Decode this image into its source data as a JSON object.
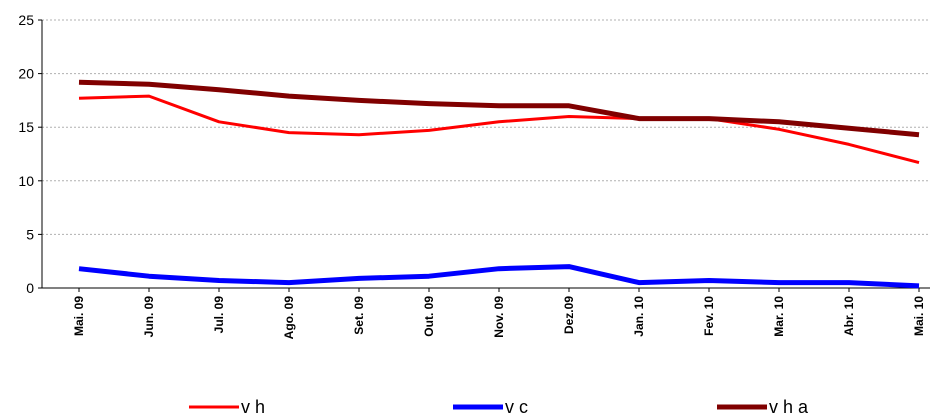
{
  "chart_data": {
    "type": "line",
    "categories": [
      "Mai. 09",
      "Jun. 09",
      "Jul. 09",
      "Ago. 09",
      "Set. 09",
      "Out. 09",
      "Nov. 09",
      "Dez.09",
      "Jan. 10",
      "Fev. 10",
      "Mar. 10",
      "Abr. 10",
      "Mai. 10"
    ],
    "series": [
      {
        "name": "v h",
        "color": "#ff0000",
        "values": [
          17.7,
          17.9,
          15.5,
          14.5,
          14.3,
          14.7,
          15.5,
          16.0,
          15.8,
          15.8,
          14.8,
          13.4,
          11.7
        ]
      },
      {
        "name": "v c",
        "color": "#0000ff",
        "values": [
          1.8,
          1.1,
          0.7,
          0.5,
          0.9,
          1.1,
          1.8,
          2.0,
          0.5,
          0.7,
          0.5,
          0.5,
          0.2
        ]
      },
      {
        "name": "v h a",
        "color": "#800000",
        "values": [
          19.2,
          19.0,
          18.5,
          17.9,
          17.5,
          17.2,
          17.0,
          17.0,
          15.8,
          15.8,
          15.5,
          14.9,
          14.3
        ]
      }
    ],
    "yticks": [
      "0",
      "5",
      "10",
      "15",
      "20",
      "25"
    ],
    "ylim": [
      0,
      25
    ],
    "grid": true,
    "legend_position": "bottom",
    "title": "",
    "xlabel": "",
    "ylabel": ""
  }
}
